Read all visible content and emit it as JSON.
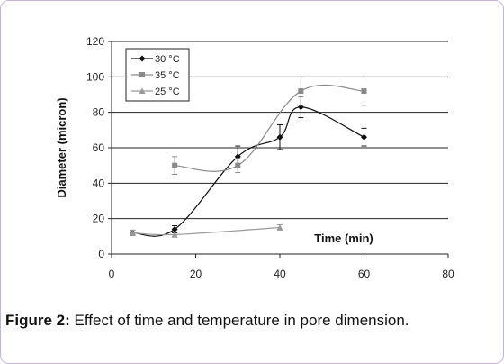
{
  "chart_data": {
    "type": "line",
    "xlabel": "Time (min)",
    "ylabel": "Diameter (micron)",
    "xlim": [
      0,
      80
    ],
    "ylim": [
      0,
      120
    ],
    "x_ticks": [
      "0",
      "20",
      "40",
      "60",
      "80"
    ],
    "y_ticks": [
      "0",
      "20",
      "40",
      "60",
      "80",
      "100",
      "120"
    ],
    "grid": "horizontal",
    "legend_position": "top-left",
    "series": [
      {
        "name": "30 °C",
        "marker": "diamond",
        "color": "#111111",
        "x": [
          5,
          15,
          30,
          40,
          45,
          60
        ],
        "y": [
          12,
          14,
          55,
          66,
          83,
          66
        ],
        "err": [
          1.5,
          2,
          6,
          7,
          6,
          5
        ]
      },
      {
        "name": "35 °C",
        "marker": "square",
        "color": "#8a8a8a",
        "x": [
          15,
          30,
          45,
          60
        ],
        "y": [
          50,
          50,
          92,
          92
        ],
        "err": [
          5,
          4,
          8,
          8
        ]
      },
      {
        "name": "25 °C",
        "marker": "triangle",
        "color": "#9a9a9a",
        "x": [
          5,
          15,
          40
        ],
        "y": [
          12,
          11,
          15
        ],
        "err": [
          1.5,
          1.5,
          1.5
        ]
      }
    ]
  },
  "caption": {
    "label": "Figure 2:",
    "text": " Effect of time and temperature in pore dimension."
  }
}
